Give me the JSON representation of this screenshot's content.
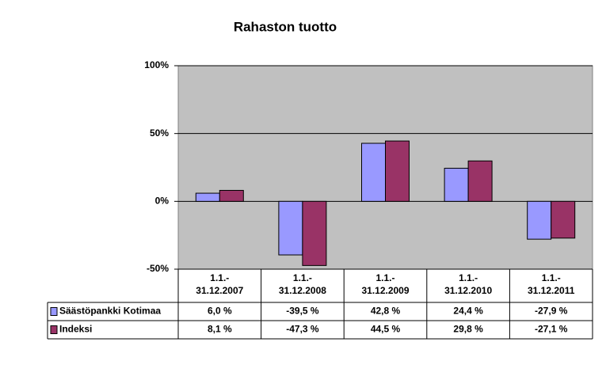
{
  "chart_data": {
    "type": "bar",
    "title": "Rahaston tuotto",
    "categories": [
      [
        "1.1.-",
        "31.12.2007"
      ],
      [
        "1.1.-",
        "31.12.2008"
      ],
      [
        "1.1.-",
        "31.12.2009"
      ],
      [
        "1.1.-",
        "31.12.2010"
      ],
      [
        "1.1.-",
        "31.12.2011"
      ]
    ],
    "series": [
      {
        "name": "Säästöpankki Kotimaa",
        "color": "#9999ff",
        "values": [
          6.0,
          -39.5,
          42.8,
          24.4,
          -27.9
        ],
        "value_labels": [
          "6,0 %",
          "-39,5 %",
          "42,8 %",
          "24,4 %",
          "-27,9 %"
        ]
      },
      {
        "name": "Indeksi",
        "color": "#993366",
        "values": [
          8.1,
          -47.3,
          44.5,
          29.8,
          -27.1
        ],
        "value_labels": [
          "8,1 %",
          "-47,3 %",
          "44,5 %",
          "29,8 %",
          "-27,1 %"
        ]
      }
    ],
    "ylim": [
      -50,
      100
    ],
    "yticks": [
      {
        "value": -50,
        "label": "-50%"
      },
      {
        "value": 0,
        "label": "0%"
      },
      {
        "value": 50,
        "label": "50%"
      },
      {
        "value": 100,
        "label": "100%"
      }
    ],
    "grid": true,
    "plot_background": "#c0c0c0"
  }
}
